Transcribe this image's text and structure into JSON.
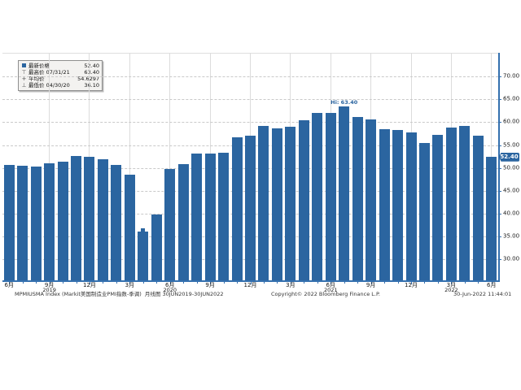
{
  "colors": {
    "bar": "#2B65A0",
    "axis": "#3470AF",
    "badge_bg": "#2B65A0",
    "hi_text": "#2B65A0",
    "grid_h": "#c9c9c9",
    "grid_v": "#dcdcdc"
  },
  "legend": {
    "rows": [
      {
        "icon": "last-price-square-icon",
        "label": "最新价格",
        "value": "52.40"
      },
      {
        "icon": "high-tick-icon",
        "label": "最高价 07/31/21",
        "value": "63.40"
      },
      {
        "icon": "average-cross-icon",
        "label": "平均价",
        "value": "54.6297"
      },
      {
        "icon": "low-tick-icon",
        "label": "最低价 04/30/20",
        "value": "36.10"
      }
    ]
  },
  "chart_data": {
    "type": "bar",
    "categories": [
      "2019-06",
      "2019-07",
      "2019-08",
      "2019-09",
      "2019-10",
      "2019-11",
      "2019-12",
      "2020-01",
      "2020-02",
      "2020-03",
      "2020-04",
      "2020-05",
      "2020-06",
      "2020-07",
      "2020-08",
      "2020-09",
      "2020-10",
      "2020-11",
      "2020-12",
      "2021-01",
      "2021-02",
      "2021-03",
      "2021-04",
      "2021-05",
      "2021-06",
      "2021-07",
      "2021-08",
      "2021-09",
      "2021-10",
      "2021-11",
      "2021-12",
      "2022-01",
      "2022-02",
      "2022-03",
      "2022-04",
      "2022-05",
      "2022-06"
    ],
    "values": [
      50.6,
      50.4,
      50.3,
      51.1,
      51.3,
      52.6,
      52.4,
      51.9,
      50.7,
      48.5,
      36.1,
      39.8,
      49.8,
      50.9,
      53.1,
      53.2,
      53.4,
      56.7,
      57.1,
      59.2,
      58.6,
      59.1,
      60.5,
      62.1,
      62.1,
      63.4,
      61.1,
      60.7,
      58.4,
      58.3,
      57.7,
      55.5,
      57.3,
      58.8,
      59.2,
      57.0,
      52.4
    ],
    "ylim": [
      25.4,
      75.2
    ],
    "yticks": [
      30,
      35,
      40,
      45,
      50,
      55,
      60,
      65,
      70
    ],
    "x_ticks": [
      {
        "i": 0,
        "label": "6月"
      },
      {
        "i": 3,
        "label": "9月",
        "year": "2019"
      },
      {
        "i": 6,
        "label": "12月"
      },
      {
        "i": 9,
        "label": "3月"
      },
      {
        "i": 12,
        "label": "6月",
        "year": "2020"
      },
      {
        "i": 15,
        "label": "9月"
      },
      {
        "i": 18,
        "label": "12月"
      },
      {
        "i": 21,
        "label": "3月"
      },
      {
        "i": 24,
        "label": "6月",
        "year": "2021"
      },
      {
        "i": 27,
        "label": "9月"
      },
      {
        "i": 30,
        "label": "12月"
      },
      {
        "i": 33,
        "label": "3月",
        "year": "2022"
      },
      {
        "i": 36,
        "label": "6月"
      }
    ],
    "annotations": {
      "hi_label": "Hi: 63.40",
      "hi_index": 25,
      "low_marker_index": 10,
      "last_price_badge": "52.40"
    },
    "legend_position": "top-left",
    "grid": true,
    "value_axis_side": "right"
  },
  "footer": {
    "security": "MPMIUSMA Index (Markit美国制造业PMI指数-季调)",
    "period": "月线图 30JUN2019-30JUN2022",
    "copyright": "Copyright© 2022 Bloomberg Finance L.P.",
    "timestamp": "30-Jun-2022 11:44:01"
  }
}
